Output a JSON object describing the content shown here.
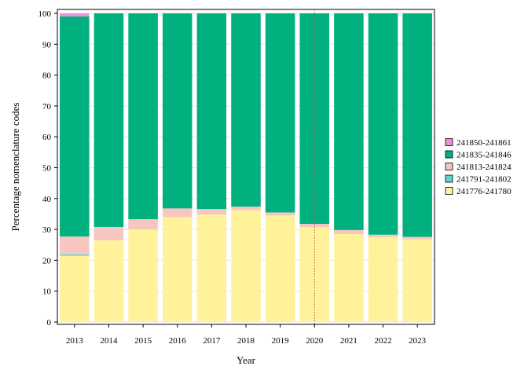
{
  "chart_data": {
    "type": "bar",
    "stacked": true,
    "xlabel": "Year",
    "ylabel": "Percentage nomenclature codes",
    "ylim": [
      0,
      100
    ],
    "yticks": [
      0,
      10,
      20,
      30,
      40,
      50,
      60,
      70,
      80,
      90,
      100
    ],
    "grid": "horizontal",
    "legend_position": "right",
    "categories": [
      "2013",
      "2014",
      "2015",
      "2016",
      "2017",
      "2018",
      "2019",
      "2020",
      "2021",
      "2022",
      "2023"
    ],
    "reference_line": {
      "x": "2020",
      "color": "#c0504d",
      "style": "dotted"
    },
    "series": [
      {
        "name": "241776-241780",
        "color": "#fff29b",
        "values": [
          21.5,
          26.5,
          30.0,
          34.0,
          34.8,
          36.2,
          34.5,
          30.8,
          28.5,
          27.5,
          26.8
        ]
      },
      {
        "name": "241791-241802",
        "color": "#5fd6d0",
        "values": [
          0.4,
          0,
          0,
          0,
          0,
          0,
          0,
          0,
          0,
          0,
          0
        ]
      },
      {
        "name": "241813-241824",
        "color": "#f7c6c0",
        "values": [
          5.8,
          4.3,
          3.3,
          2.8,
          1.8,
          1.2,
          1.0,
          1.0,
          1.3,
          0.8,
          0.8
        ]
      },
      {
        "name": "241835-241846",
        "color": "#00b07e",
        "values": [
          71.3,
          69.2,
          66.7,
          63.2,
          63.4,
          62.6,
          64.5,
          68.2,
          70.2,
          71.7,
          72.4
        ]
      },
      {
        "name": "241850-241861",
        "color": "#f08ee0",
        "values": [
          1.0,
          0,
          0,
          0,
          0,
          0,
          0,
          0,
          0,
          0,
          0
        ]
      }
    ]
  }
}
